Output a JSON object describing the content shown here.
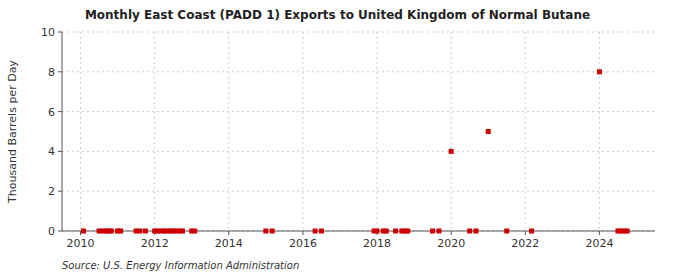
{
  "chart_data": {
    "type": "scatter",
    "title": "Monthly East Coast (PADD 1) Exports to United Kingdom of Normal Butane",
    "ylabel": "Thousand Barrels per Day",
    "annotations": [
      "Source: U.S. Energy Information Administration"
    ],
    "x": [
      2010.08,
      2010.5,
      2010.6,
      2010.7,
      2010.75,
      2010.83,
      2011.0,
      2011.08,
      2011.5,
      2011.6,
      2011.75,
      2012.0,
      2012.08,
      2012.17,
      2012.25,
      2012.33,
      2012.42,
      2012.5,
      2012.58,
      2012.67,
      2012.75,
      2013.0,
      2013.08,
      2015.0,
      2015.17,
      2016.33,
      2016.5,
      2017.92,
      2018.0,
      2018.17,
      2018.25,
      2018.5,
      2018.67,
      2018.75,
      2018.83,
      2019.5,
      2019.67,
      2020.0,
      2020.5,
      2020.67,
      2021.0,
      2021.5,
      2022.17,
      2024.0,
      2024.5,
      2024.58,
      2024.67,
      2024.75
    ],
    "values": [
      0.0,
      0.0,
      0.0,
      0.0,
      0.0,
      0.0,
      0.0,
      0.0,
      0.0,
      0.0,
      0.0,
      0.0,
      0.0,
      0.0,
      0.0,
      0.0,
      0.0,
      0.0,
      0.0,
      0.0,
      0.0,
      0.0,
      0.0,
      0.0,
      0.0,
      0.0,
      0.0,
      0.0,
      0.0,
      0.0,
      0.0,
      0.0,
      0.0,
      0.0,
      0.0,
      0.0,
      0.0,
      4.0,
      0.0,
      0.0,
      5.0,
      0.0,
      0.0,
      8.0,
      0.0,
      0.0,
      0.0,
      0.0
    ],
    "xlim": [
      2009.5,
      2025.5
    ],
    "ylim": [
      0,
      10
    ],
    "xticks": [
      2010,
      2012,
      2014,
      2016,
      2018,
      2020,
      2022,
      2024
    ],
    "yticks": [
      0,
      2,
      4,
      6,
      8,
      10
    ],
    "color": "#cc0000",
    "marker": "square",
    "grid": true
  }
}
